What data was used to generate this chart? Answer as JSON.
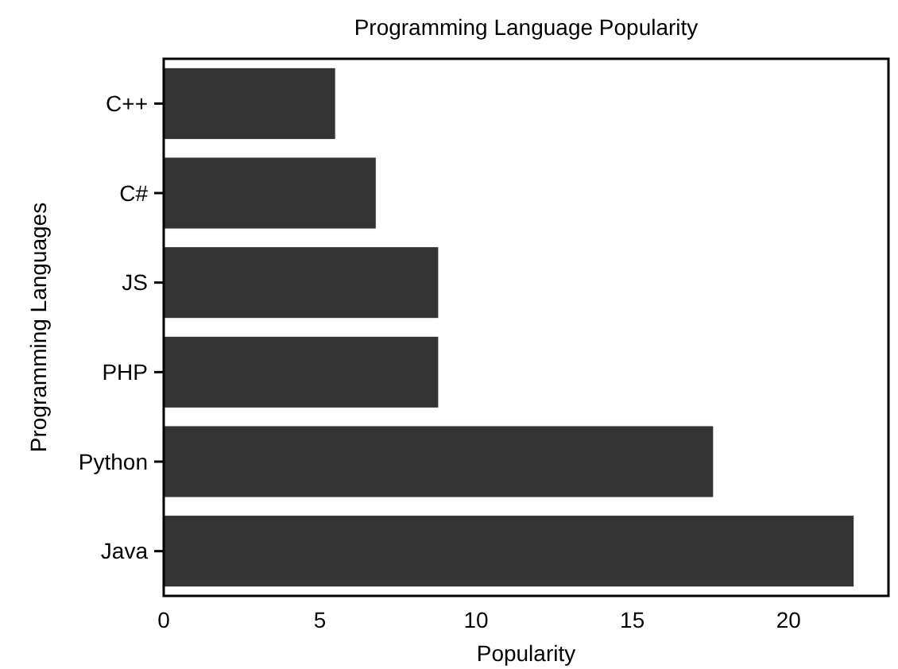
{
  "chart_data": {
    "type": "bar",
    "orientation": "horizontal",
    "title": "Programming Language Popularity",
    "xlabel": "Popularity",
    "ylabel": "Programming Languages",
    "categories": [
      "C++",
      "C#",
      "JS",
      "PHP",
      "Python",
      "Java"
    ],
    "values": [
      5.5,
      6.8,
      8.8,
      8.8,
      17.6,
      22.1
    ],
    "color": "#333333",
    "xlim": [
      0,
      23.2
    ],
    "xticks": [
      0,
      5,
      10,
      15,
      20
    ],
    "grid": false
  }
}
